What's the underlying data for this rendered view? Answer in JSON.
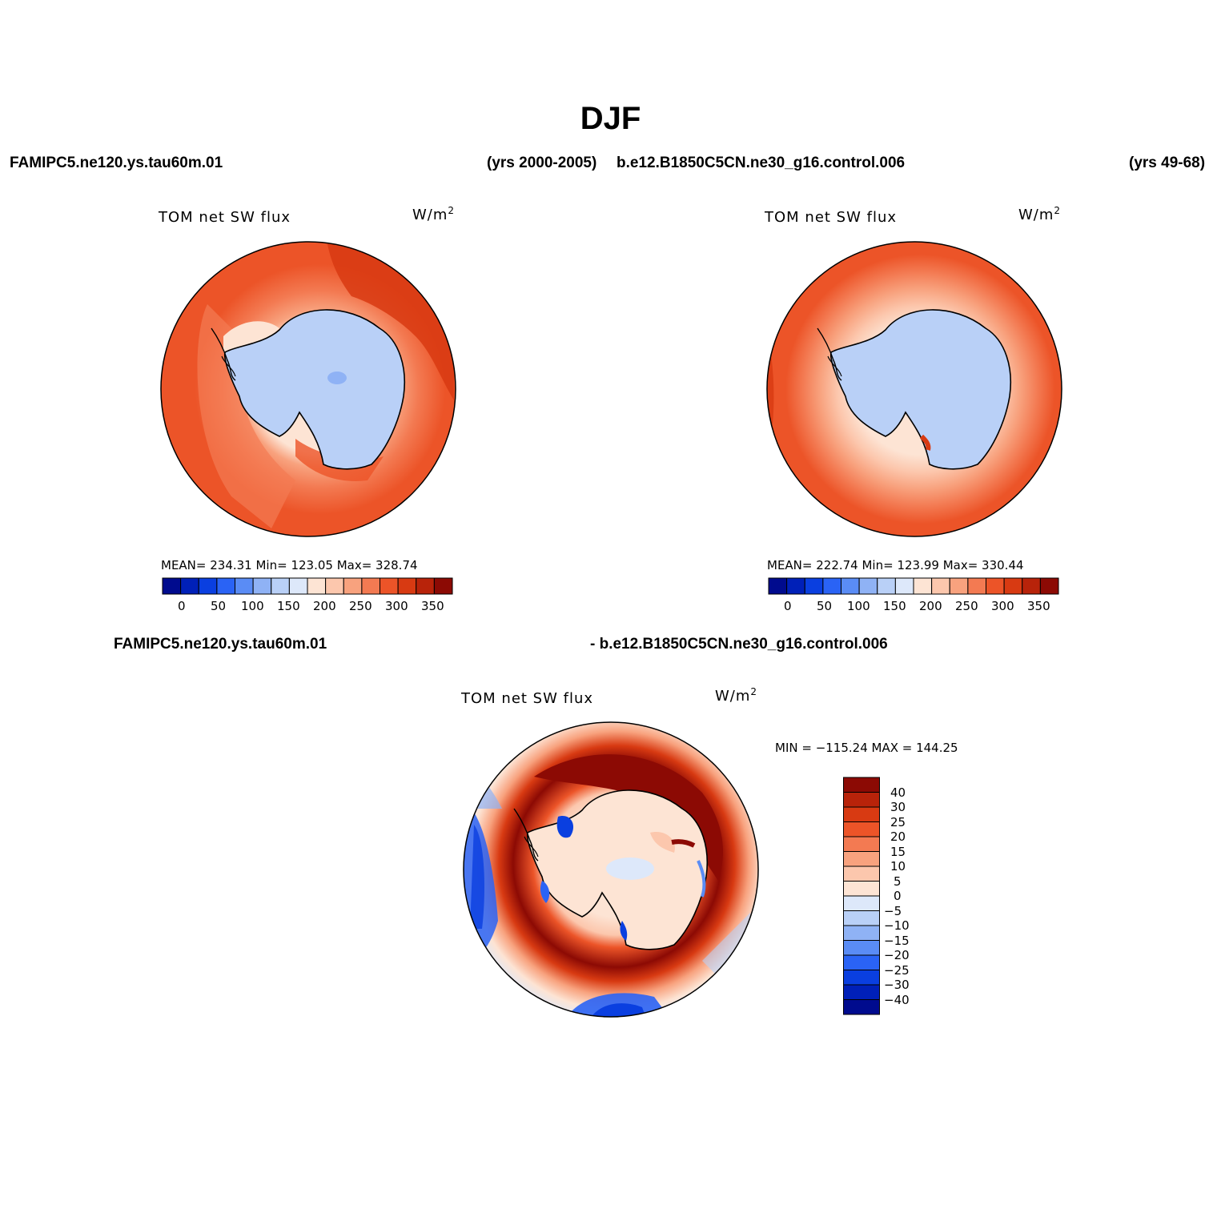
{
  "figure": {
    "title": "DJF",
    "header_left_case": "FAMIPC5.ne120.ys.tau60m.01",
    "header_left_years": "(yrs 2000-2005)",
    "header_right_case": "b.e12.B1850C5CN.ne30_g16.control.006",
    "header_right_years": "(yrs 49-68)",
    "diff_label_left": "FAMIPC5.ne120.ys.tau60m.01",
    "diff_label_right": "- b.e12.B1850C5CN.ne30_g16.control.006"
  },
  "panels": [
    {
      "title": "TOM net SW flux",
      "units_base": "W/m",
      "units_exp": "2",
      "stats": "MEAN= 234.31   Min= 123.05   Max= 328.74",
      "map_description": "south-polar-stereographic"
    },
    {
      "title": "TOM net SW flux",
      "units_base": "W/m",
      "units_exp": "2",
      "stats": "MEAN= 222.74   Min= 123.99   Max= 330.44",
      "map_description": "south-polar-stereographic"
    },
    {
      "title": "TOM net SW flux",
      "units_base": "W/m",
      "units_exp": "2",
      "stats": "MIN = −115.24 MAX = 144.25",
      "map_description": "south-polar-stereographic difference"
    }
  ],
  "colorbars": {
    "absolute": {
      "labels": [
        "0",
        "50",
        "100",
        "150",
        "200",
        "250",
        "300",
        "350"
      ],
      "colors": [
        "#000b8e",
        "#0020b8",
        "#0a3fe0",
        "#2a63f5",
        "#5a8cf5",
        "#8fb2f5",
        "#b9d0f7",
        "#dde8fa",
        "#fde4d4",
        "#fcc7ad",
        "#f8a27e",
        "#f37a52",
        "#ec5428",
        "#d83a12",
        "#b8230a",
        "#8c0a04"
      ]
    },
    "difference": {
      "labels": [
        "40",
        "30",
        "25",
        "20",
        "15",
        "10",
        "5",
        "0",
        "−5",
        "−10",
        "−15",
        "−20",
        "−25",
        "−30",
        "−40"
      ],
      "colors": [
        "#8c0a04",
        "#b8230a",
        "#d83a12",
        "#ec5428",
        "#f37a52",
        "#f8a27e",
        "#fcc7ad",
        "#fde4d4",
        "#dde8fa",
        "#b9d0f7",
        "#8fb2f5",
        "#5a8cf5",
        "#2a63f5",
        "#0a3fe0",
        "#0020b8",
        "#000b8e"
      ]
    }
  },
  "chart_data": {
    "type": "heatmap",
    "title": "DJF",
    "variable": "TOM net SW flux",
    "units": "W/m2",
    "season": "DJF",
    "maps": [
      {
        "case": "FAMIPC5.ne120.ys.tau60m.01",
        "years": "2000-2005",
        "mean": 234.31,
        "min": 123.05,
        "max": 328.74,
        "contour_levels": [
          0,
          25,
          50,
          75,
          100,
          125,
          150,
          175,
          200,
          225,
          250,
          275,
          300,
          325,
          350
        ]
      },
      {
        "case": "b.e12.B1850C5CN.ne30_g16.control.006",
        "years": "49-68",
        "mean": 222.74,
        "min": 123.99,
        "max": 330.44,
        "contour_levels": [
          0,
          25,
          50,
          75,
          100,
          125,
          150,
          175,
          200,
          225,
          250,
          275,
          300,
          325,
          350
        ]
      },
      {
        "case": "difference",
        "min": -115.24,
        "max": 144.25,
        "contour_levels": [
          -40,
          -30,
          -25,
          -20,
          -15,
          -10,
          -5,
          0,
          5,
          10,
          15,
          20,
          25,
          30,
          40
        ]
      }
    ]
  }
}
